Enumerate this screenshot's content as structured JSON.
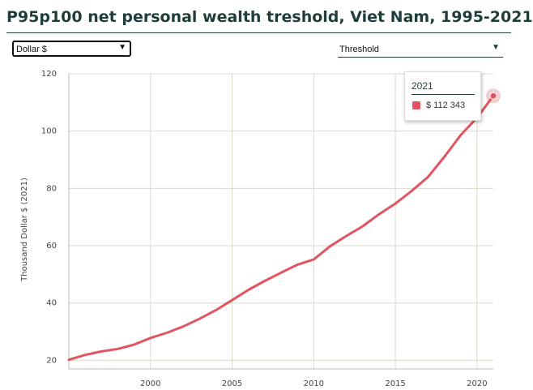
{
  "header": {
    "title": "P95p100 net personal wealth treshold, Viet Nam, 1995-2021"
  },
  "controls": {
    "unit_select": {
      "selected": "Dollar $"
    },
    "metric_select": {
      "selected": "Threshold"
    }
  },
  "tooltip": {
    "year": "2021",
    "value": "$ 112 343"
  },
  "colors": {
    "line": "#e05560",
    "grid": "#ddd8cc",
    "title": "#1f3d3b"
  },
  "chart_data": {
    "type": "line",
    "title": "P95p100 net personal wealth treshold, Viet Nam, 1995-2021",
    "xlabel": "",
    "ylabel": "Thousand Dollar $ (2021)",
    "xlim": [
      1995,
      2021
    ],
    "ylim": [
      17,
      120
    ],
    "x_ticks": [
      2000,
      2005,
      2010,
      2015,
      2020
    ],
    "y_ticks": [
      20,
      40,
      60,
      80,
      100,
      120
    ],
    "grid": true,
    "series": [
      {
        "x": [
          1995,
          1996,
          1997,
          1998,
          1999,
          2000,
          2001,
          2002,
          2003,
          2004,
          2005,
          2006,
          2007,
          2008,
          2009,
          2010,
          2011,
          2012,
          2013,
          2014,
          2015,
          2016,
          2017,
          2018,
          2019,
          2020,
          2021
        ],
        "values": [
          20.2,
          21.9,
          23.1,
          24.0,
          25.5,
          27.8,
          29.6,
          31.8,
          34.5,
          37.5,
          41.0,
          44.6,
          47.7,
          50.6,
          53.4,
          55.2,
          59.8,
          63.4,
          66.8,
          71.0,
          74.7,
          79.1,
          84.0,
          91.0,
          98.6,
          104.6,
          112.3
        ]
      }
    ]
  }
}
